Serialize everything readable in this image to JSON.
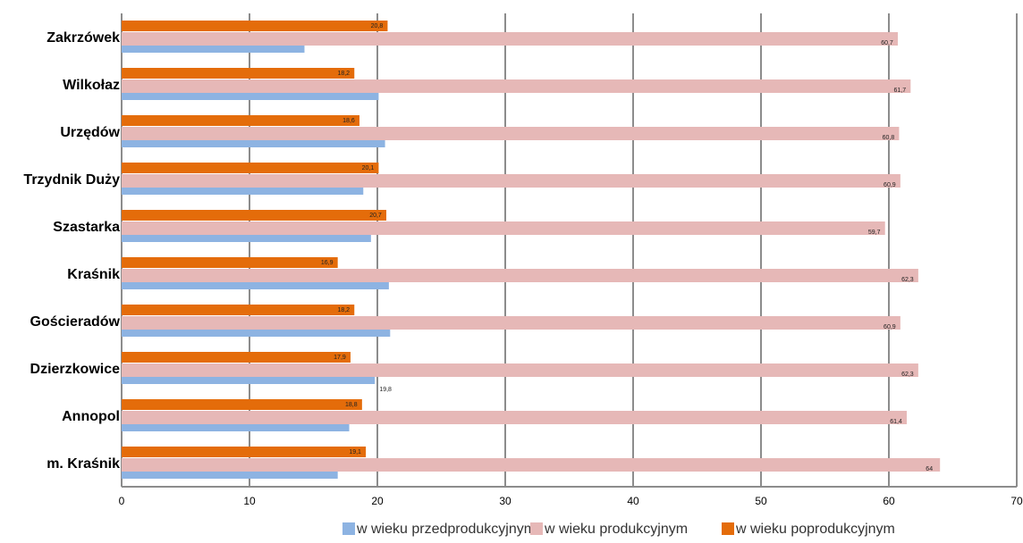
{
  "chart_data": {
    "type": "bar",
    "orientation": "horizontal",
    "categories": [
      "Zakrzówek",
      "Wilkołaz",
      "Urzędów",
      "Trzydnik Duży",
      "Szastarka",
      "Kraśnik",
      "Gościeradów",
      "Dzierzkowice",
      "Annopol",
      "m. Kraśnik"
    ],
    "series": [
      {
        "name": "w wieku przedprodukcyjnym",
        "color": "#8db3e2",
        "values": [
          14.3,
          20.1,
          20.6,
          18.9,
          19.5,
          20.9,
          21.0,
          19.8,
          17.8,
          16.9
        ],
        "value_labels": [
          null,
          null,
          null,
          null,
          null,
          null,
          null,
          "19,8",
          null,
          null
        ]
      },
      {
        "name": "w wieku produkcyjnym",
        "color": "#e6b8b7",
        "values": [
          60.7,
          61.7,
          60.8,
          60.9,
          59.7,
          62.3,
          60.9,
          62.3,
          61.4,
          64
        ],
        "value_labels": [
          "60,7",
          "61,7",
          "60,8",
          "60,9",
          "59,7",
          "62,3",
          "60,9",
          "62,3",
          "61,4",
          "64"
        ]
      },
      {
        "name": "w wieku poprodukcyjnym",
        "color": "#e46c0a",
        "values": [
          20.8,
          18.2,
          18.6,
          20.1,
          20.7,
          16.9,
          18.2,
          17.9,
          18.8,
          19.1
        ],
        "value_labels": [
          "20,8",
          "18,2",
          "18,6",
          "20,1",
          "20,7",
          "16,9",
          "18,2",
          "17,9",
          "18,8",
          "19,1"
        ]
      }
    ],
    "xlim": [
      0,
      70
    ],
    "xticks": [
      0,
      10,
      20,
      30,
      40,
      50,
      60,
      70
    ],
    "grid": true,
    "legend": "bottom"
  }
}
